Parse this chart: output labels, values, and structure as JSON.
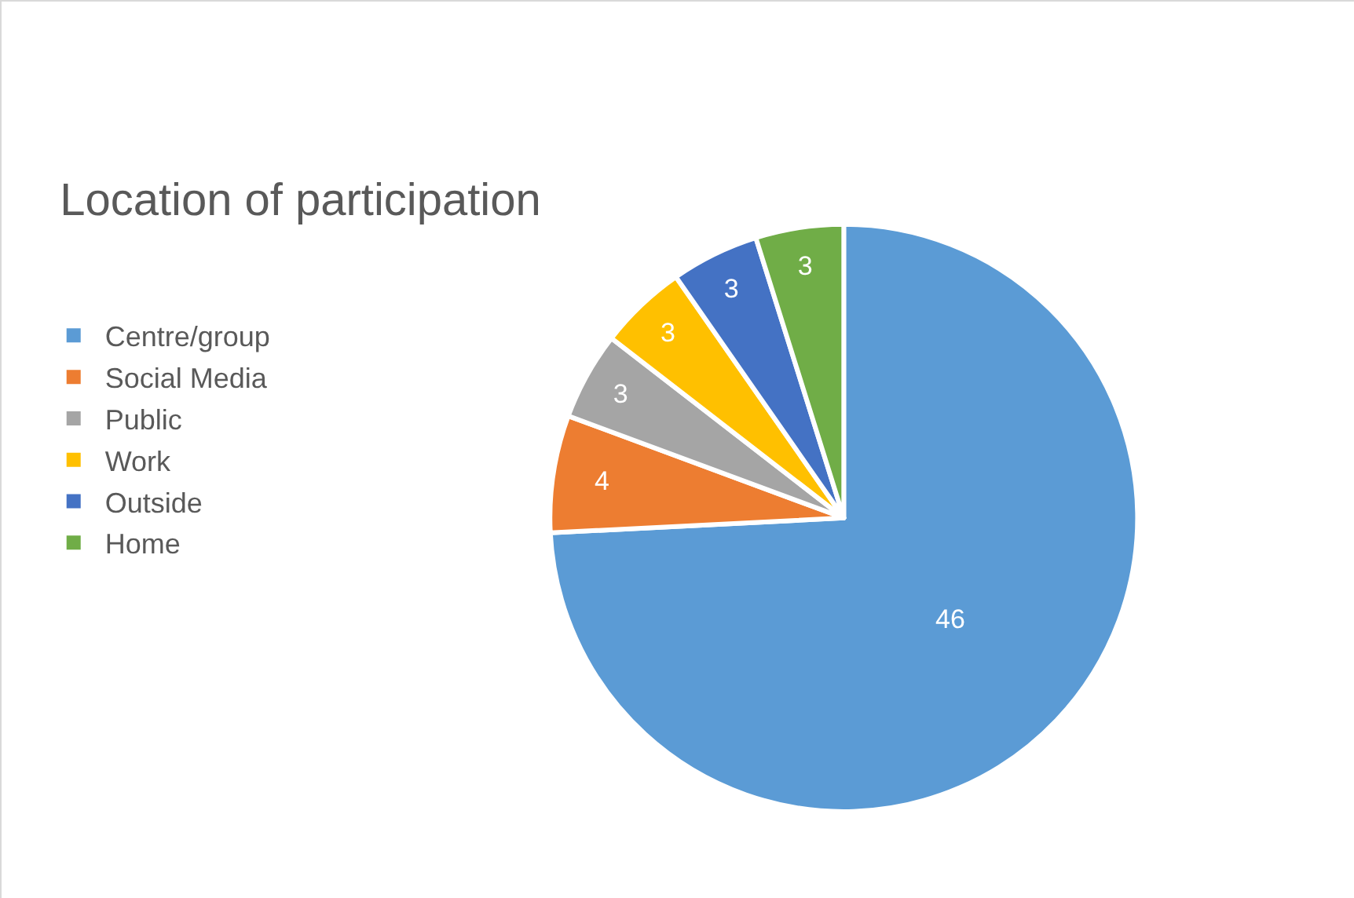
{
  "chart_data": {
    "type": "pie",
    "title": "Location of participation",
    "categories": [
      "Centre/group",
      "Social Media",
      "Public",
      "Work",
      "Outside",
      "Home"
    ],
    "values": [
      46,
      4,
      3,
      3,
      3,
      3
    ],
    "colors": [
      "#5b9bd5",
      "#ed7d31",
      "#a5a5a5",
      "#ffc000",
      "#4472c4",
      "#70ad47"
    ],
    "data_labels": true,
    "legend": "left"
  }
}
